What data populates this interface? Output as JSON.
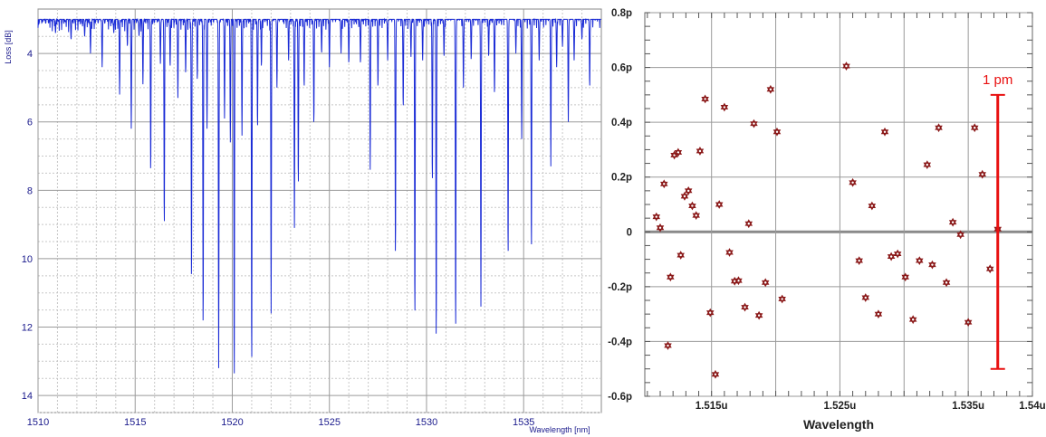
{
  "chart_data": [
    {
      "type": "line",
      "xlabel": "Wavelength [nm]",
      "ylabel": "Loss [dB]",
      "xlim": [
        1510,
        1539
      ],
      "ylim": [
        14.5,
        2.7
      ],
      "y_inverted": true,
      "x_ticks": [
        "1510",
        "1515",
        "1520",
        "1525",
        "1530",
        "1535"
      ],
      "x_tick_values": [
        1510,
        1515,
        1520,
        1525,
        1530,
        1535
      ],
      "y_ticks": [
        "4",
        "6",
        "8",
        "10",
        "12",
        "14"
      ],
      "y_tick_values": [
        4,
        6,
        8,
        10,
        12,
        14
      ],
      "grid": true,
      "baseline": 3.0,
      "series": [
        {
          "color": "#1a2bd6",
          "dips": [
            [
              1510.9,
              3.4
            ],
            [
              1511.7,
              3.6
            ],
            [
              1512.4,
              3.5
            ],
            [
              1512.7,
              4.0
            ],
            [
              1513.3,
              4.4
            ],
            [
              1513.9,
              3.4
            ],
            [
              1514.2,
              5.2
            ],
            [
              1514.6,
              3.8
            ],
            [
              1514.8,
              6.2
            ],
            [
              1515.2,
              3.5
            ],
            [
              1515.4,
              4.9
            ],
            [
              1515.8,
              7.5
            ],
            [
              1516.3,
              4.3
            ],
            [
              1516.5,
              9.1
            ],
            [
              1516.8,
              4.4
            ],
            [
              1517.2,
              5.3
            ],
            [
              1517.6,
              4.6
            ],
            [
              1517.9,
              10.7
            ],
            [
              1518.2,
              4.8
            ],
            [
              1518.5,
              12.1
            ],
            [
              1518.7,
              6.2
            ],
            [
              1519.3,
              13.2
            ],
            [
              1519.6,
              5.9
            ],
            [
              1519.9,
              6.6
            ],
            [
              1520.1,
              13.7
            ],
            [
              1520.5,
              6.4
            ],
            [
              1521.0,
              13.2
            ],
            [
              1521.3,
              6.2
            ],
            [
              1521.5,
              4.4
            ],
            [
              1522.0,
              11.6
            ],
            [
              1522.3,
              5.0
            ],
            [
              1522.9,
              4.2
            ],
            [
              1523.2,
              9.1
            ],
            [
              1523.4,
              7.9
            ],
            [
              1523.7,
              5.0
            ],
            [
              1524.2,
              6.1
            ],
            [
              1524.6,
              4.0
            ],
            [
              1525.0,
              4.4
            ],
            [
              1525.6,
              4.0
            ],
            [
              1526.0,
              4.3
            ],
            [
              1526.6,
              4.3
            ],
            [
              1527.1,
              7.4
            ],
            [
              1527.5,
              5.0
            ],
            [
              1528.0,
              4.2
            ],
            [
              1528.4,
              10.0
            ],
            [
              1528.8,
              5.6
            ],
            [
              1529.2,
              4.1
            ],
            [
              1529.4,
              11.8
            ],
            [
              1529.8,
              4.2
            ],
            [
              1530.3,
              7.8
            ],
            [
              1530.5,
              12.5
            ],
            [
              1530.9,
              4.1
            ],
            [
              1531.5,
              12.2
            ],
            [
              1531.9,
              5.0
            ],
            [
              1532.3,
              4.2
            ],
            [
              1532.8,
              11.4
            ],
            [
              1533.2,
              4.1
            ],
            [
              1533.5,
              5.2
            ],
            [
              1534.2,
              10.0
            ],
            [
              1534.6,
              4.0
            ],
            [
              1534.9,
              6.5
            ],
            [
              1535.4,
              9.8
            ],
            [
              1535.8,
              4.2
            ],
            [
              1536.4,
              7.3
            ],
            [
              1536.7,
              4.4
            ],
            [
              1537.0,
              3.8
            ],
            [
              1537.3,
              6.0
            ],
            [
              1537.6,
              4.2
            ],
            [
              1538.0,
              3.6
            ],
            [
              1538.4,
              5.0
            ]
          ]
        }
      ]
    },
    {
      "type": "scatter",
      "xlabel": "Wavelength",
      "ylabel": "",
      "xlim": [
        1.5098,
        1.54
      ],
      "ylim": [
        -0.6,
        0.8
      ],
      "x_ticks": [
        "1.515u",
        "1.525u",
        "1.535u",
        "1.54u"
      ],
      "x_tick_values": [
        1.515,
        1.525,
        1.535,
        1.54
      ],
      "y_ticks": [
        "0.8p",
        "0.6p",
        "0.4p",
        "0.2p",
        "0",
        "-0.2p",
        "-0.4p",
        "-0.6p"
      ],
      "y_tick_values": [
        0.8,
        0.6,
        0.4,
        0.2,
        0,
        -0.2,
        -0.4,
        -0.6
      ],
      "grid": true,
      "marker_color": "#8b1a1a",
      "points": [
        [
          1.5107,
          0.055
        ],
        [
          1.511,
          0.015
        ],
        [
          1.5113,
          0.175
        ],
        [
          1.5116,
          -0.415
        ],
        [
          1.5118,
          -0.165
        ],
        [
          1.5121,
          0.28
        ],
        [
          1.5124,
          0.29
        ],
        [
          1.5126,
          -0.085
        ],
        [
          1.5129,
          0.13
        ],
        [
          1.5132,
          0.15
        ],
        [
          1.5135,
          0.095
        ],
        [
          1.5138,
          0.06
        ],
        [
          1.5141,
          0.295
        ],
        [
          1.5145,
          0.485
        ],
        [
          1.5149,
          -0.295
        ],
        [
          1.5153,
          -0.52
        ],
        [
          1.5156,
          0.1
        ],
        [
          1.516,
          0.455
        ],
        [
          1.5164,
          -0.075
        ],
        [
          1.5168,
          -0.18
        ],
        [
          1.5171,
          -0.178
        ],
        [
          1.5176,
          -0.275
        ],
        [
          1.5179,
          0.03
        ],
        [
          1.5183,
          0.395
        ],
        [
          1.5187,
          -0.305
        ],
        [
          1.5192,
          -0.185
        ],
        [
          1.5196,
          0.52
        ],
        [
          1.5201,
          0.365
        ],
        [
          1.5205,
          -0.245
        ],
        [
          1.5255,
          0.605
        ],
        [
          1.526,
          0.18
        ],
        [
          1.5265,
          -0.105
        ],
        [
          1.527,
          -0.24
        ],
        [
          1.5275,
          0.095
        ],
        [
          1.528,
          -0.3
        ],
        [
          1.5285,
          0.365
        ],
        [
          1.529,
          -0.09
        ],
        [
          1.5295,
          -0.08
        ],
        [
          1.5301,
          -0.165
        ],
        [
          1.5307,
          -0.32
        ],
        [
          1.5312,
          -0.105
        ],
        [
          1.5318,
          0.245
        ],
        [
          1.5322,
          -0.12
        ],
        [
          1.5327,
          0.38
        ],
        [
          1.5333,
          -0.185
        ],
        [
          1.5338,
          0.035
        ],
        [
          1.5344,
          -0.01
        ],
        [
          1.535,
          -0.33
        ],
        [
          1.5355,
          0.38
        ],
        [
          1.5361,
          0.21
        ],
        [
          1.5367,
          -0.135
        ],
        [
          1.5373,
          0.01
        ]
      ],
      "annotation": {
        "text": "1 pm",
        "x": 1.5373,
        "y_top": 0.5,
        "y_bottom": -0.5,
        "color": "#e81010"
      }
    }
  ]
}
